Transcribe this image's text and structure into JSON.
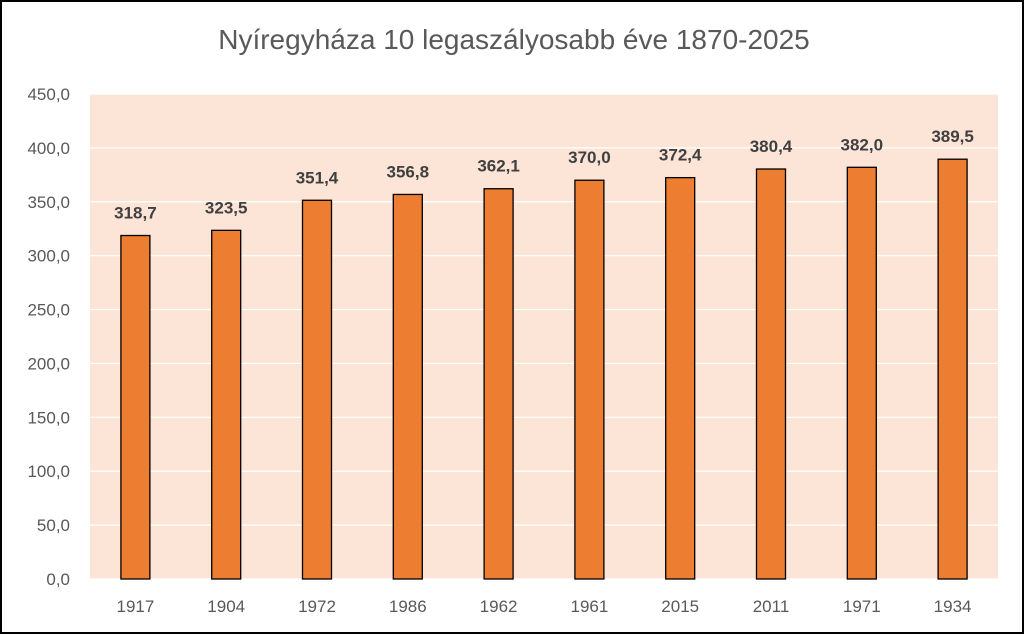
{
  "colors": {
    "plot_background": "#FCE4D6",
    "bar_fill": "#ED7D31",
    "bar_outline": "#000000",
    "gridline": "#FFFFFF",
    "text": "#595959",
    "data_label": "#404040"
  },
  "chart_data": {
    "type": "bar",
    "title": "Nyíregyháza 10 legaszályosabb éve 1870-2025",
    "xlabel": "",
    "ylabel": "",
    "categories": [
      "1917",
      "1904",
      "1972",
      "1986",
      "1962",
      "1961",
      "2015",
      "2011",
      "1971",
      "1934"
    ],
    "values": [
      318.7,
      323.5,
      351.4,
      356.8,
      362.1,
      370.0,
      372.4,
      380.4,
      382.0,
      389.5
    ],
    "data_labels": [
      "318,7",
      "323,5",
      "351,4",
      "356,8",
      "362,1",
      "370,0",
      "372,4",
      "380,4",
      "382,0",
      "389,5"
    ],
    "ylim": [
      0,
      450
    ],
    "yticks": [
      "0,0",
      "50,0",
      "100,0",
      "150,0",
      "200,0",
      "250,0",
      "300,0",
      "350,0",
      "400,0",
      "450,0"
    ],
    "grid": true,
    "legend": "none"
  }
}
